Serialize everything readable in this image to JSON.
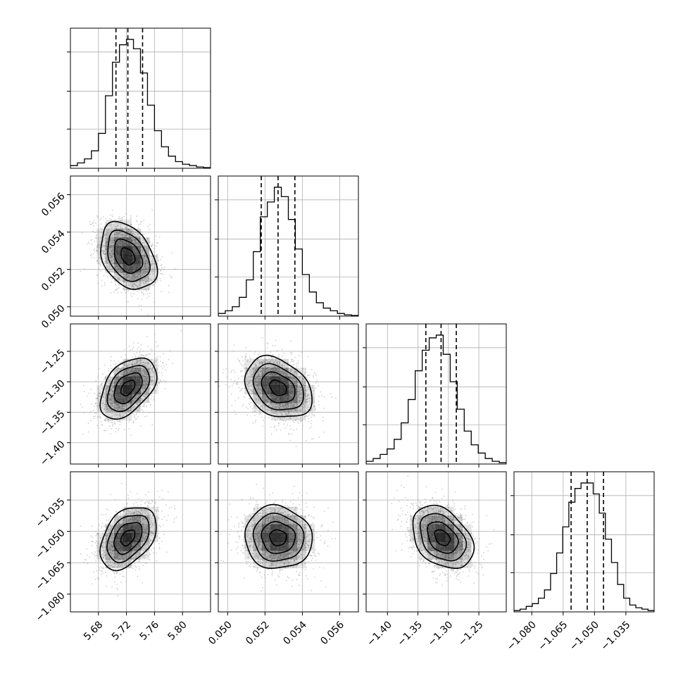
{
  "chart_data": {
    "type": "corner",
    "grid": true,
    "parameters": [
      {
        "range": [
          5.64,
          5.84
        ],
        "ticks": [
          5.68,
          5.72,
          5.76,
          5.8
        ],
        "tick_labels": [
          "5.68",
          "5.72",
          "5.76",
          "5.80"
        ],
        "quantiles": [
          5.705,
          5.722,
          5.743
        ],
        "center": 5.722,
        "spread": 0.02
      },
      {
        "range": [
          0.0495,
          0.057
        ],
        "ticks": [
          0.05,
          0.052,
          0.054,
          0.056
        ],
        "tick_labels": [
          "0.050",
          "0.052",
          "0.054",
          "0.056"
        ],
        "quantiles": [
          0.0518,
          0.0527,
          0.0536
        ],
        "center": 0.0527,
        "spread": 0.0009
      },
      {
        "range": [
          -1.435,
          -1.205
        ],
        "ticks": [
          -1.4,
          -1.35,
          -1.3,
          -1.25
        ],
        "tick_labels": [
          "−1.40",
          "−1.35",
          "−1.30",
          "−1.25"
        ],
        "quantiles": [
          -1.337,
          -1.312,
          -1.287
        ],
        "center": -1.31,
        "spread": 0.025
      },
      {
        "range": [
          -1.0885,
          -1.0215
        ],
        "ticks": [
          -1.08,
          -1.065,
          -1.05,
          -1.035
        ],
        "tick_labels": [
          "−1.080",
          "−1.065",
          "−1.050",
          "−1.035"
        ],
        "quantiles": [
          -1.0612,
          -1.0535,
          -1.0457
        ],
        "center": -1.053,
        "spread": 0.0075
      }
    ],
    "histograms": [
      [
        0.02,
        0.04,
        0.07,
        0.13,
        0.26,
        0.54,
        0.79,
        0.92,
        0.96,
        0.89,
        0.71,
        0.47,
        0.28,
        0.16,
        0.09,
        0.05,
        0.03,
        0.02,
        0.01,
        0.005
      ],
      [
        0.02,
        0.04,
        0.07,
        0.14,
        0.27,
        0.48,
        0.74,
        0.85,
        0.96,
        0.89,
        0.72,
        0.5,
        0.31,
        0.18,
        0.1,
        0.06,
        0.04,
        0.02,
        0.01,
        0.005
      ],
      [
        0.02,
        0.04,
        0.07,
        0.11,
        0.18,
        0.3,
        0.47,
        0.68,
        0.83,
        0.92,
        0.94,
        0.8,
        0.6,
        0.4,
        0.24,
        0.14,
        0.08,
        0.04,
        0.02,
        0.01
      ],
      [
        0.01,
        0.02,
        0.04,
        0.06,
        0.1,
        0.16,
        0.28,
        0.43,
        0.62,
        0.8,
        0.9,
        0.94,
        0.94,
        0.86,
        0.72,
        0.53,
        0.36,
        0.2,
        0.1,
        0.05,
        0.03,
        0.02,
        0.01
      ]
    ],
    "correlations": [
      [
        1.0,
        -0.35,
        0.45,
        0.4
      ],
      [
        -0.35,
        1.0,
        -0.3,
        -0.05
      ],
      [
        0.45,
        -0.3,
        1.0,
        -0.35
      ],
      [
        0.4,
        -0.05,
        -0.35,
        1.0
      ]
    ],
    "contour_levels_sigma": [
      0.5,
      1.0,
      1.5,
      2.0
    ],
    "colors": {
      "points": "#a8a8a8",
      "density": "#000000",
      "lines": "#000000",
      "grid": "#b0b0b0"
    }
  }
}
